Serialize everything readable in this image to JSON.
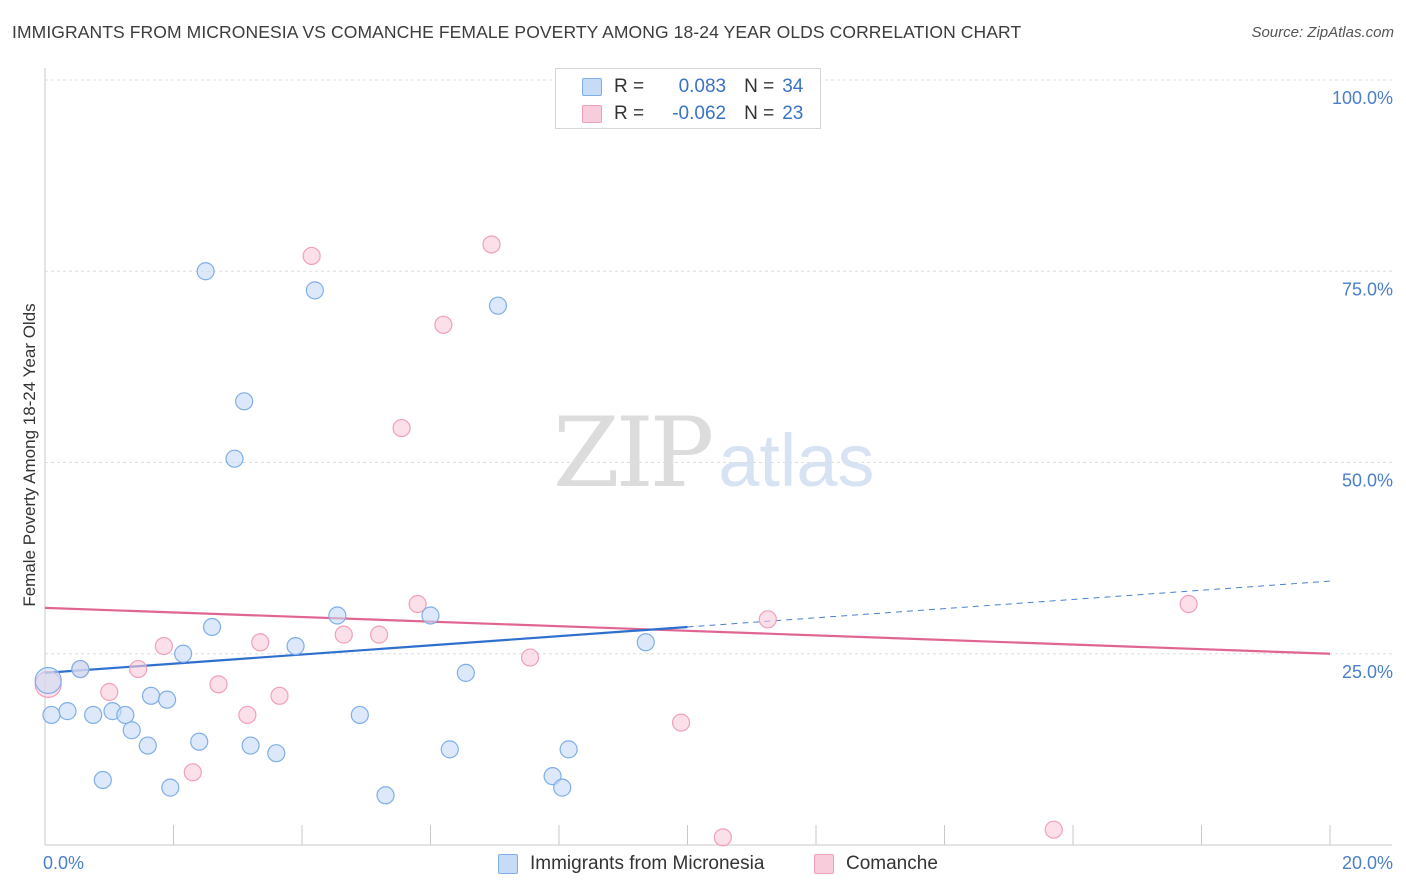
{
  "title": "IMMIGRANTS FROM MICRONESIA VS COMANCHE FEMALE POVERTY AMONG 18-24 YEAR OLDS CORRELATION CHART",
  "source": "Source: ZipAtlas.com",
  "watermark": {
    "zip": "ZIP",
    "atlas": "atlas"
  },
  "legend_top": {
    "rows": [
      {
        "r_label": "R =",
        "r_value": "0.083",
        "n_label": "N =",
        "n_value": "34"
      },
      {
        "r_label": "R =",
        "r_value": "-0.062",
        "n_label": "N =",
        "n_value": "23"
      }
    ]
  },
  "chart_data": {
    "type": "scatter",
    "title": "IMMIGRANTS FROM MICRONESIA VS COMANCHE FEMALE POVERTY AMONG 18-24 YEAR OLDS CORRELATION CHART",
    "xlabel": "",
    "ylabel": "Female Poverty Among 18-24 Year Olds",
    "xlim": [
      0,
      20
    ],
    "ylim": [
      0,
      100
    ],
    "x_ticks": [
      "0.0%",
      "20.0%"
    ],
    "y_ticks": [
      "100.0%",
      "75.0%",
      "50.0%",
      "25.0%"
    ],
    "grid": true,
    "legend_position": "bottom",
    "series": [
      {
        "name": "Immigrants from Micronesia",
        "color": "#7faee8",
        "fill": "#c6dbf6",
        "r": 0.083,
        "n": 34,
        "trend": {
          "x": [
            0,
            10
          ],
          "y": [
            22.5,
            28.5
          ],
          "dashed_extension": {
            "x": [
              10,
              20
            ],
            "y": [
              28.5,
              34.5
            ]
          }
        },
        "points": [
          {
            "x": 0.05,
            "y": 21.5
          },
          {
            "x": 0.35,
            "y": 17.5
          },
          {
            "x": 0.55,
            "y": 23.0
          },
          {
            "x": 0.75,
            "y": 17.0
          },
          {
            "x": 0.9,
            "y": 8.5
          },
          {
            "x": 1.05,
            "y": 17.5
          },
          {
            "x": 1.25,
            "y": 17.0
          },
          {
            "x": 1.35,
            "y": 15.0
          },
          {
            "x": 1.6,
            "y": 13.0
          },
          {
            "x": 1.65,
            "y": 19.5
          },
          {
            "x": 1.9,
            "y": 19.0
          },
          {
            "x": 1.95,
            "y": 7.5
          },
          {
            "x": 2.15,
            "y": 25.0
          },
          {
            "x": 2.4,
            "y": 13.5
          },
          {
            "x": 2.5,
            "y": 75.0
          },
          {
            "x": 2.6,
            "y": 28.5
          },
          {
            "x": 2.95,
            "y": 50.5
          },
          {
            "x": 3.1,
            "y": 58.0
          },
          {
            "x": 3.2,
            "y": 13.0
          },
          {
            "x": 3.6,
            "y": 12.0
          },
          {
            "x": 3.9,
            "y": 26.0
          },
          {
            "x": 4.2,
            "y": 72.5
          },
          {
            "x": 4.55,
            "y": 30.0
          },
          {
            "x": 4.9,
            "y": 17.0
          },
          {
            "x": 5.3,
            "y": 6.5
          },
          {
            "x": 6.0,
            "y": 30.0
          },
          {
            "x": 6.3,
            "y": 12.5
          },
          {
            "x": 6.55,
            "y": 22.5
          },
          {
            "x": 7.05,
            "y": 70.5
          },
          {
            "x": 7.9,
            "y": 9.0
          },
          {
            "x": 8.05,
            "y": 7.5
          },
          {
            "x": 8.15,
            "y": 12.5
          },
          {
            "x": 9.35,
            "y": 26.5
          },
          {
            "x": 0.1,
            "y": 17.0
          }
        ]
      },
      {
        "name": "Comanche",
        "color": "#f0a0bb",
        "fill": "#f9ccdb",
        "r": -0.062,
        "n": 23,
        "trend": {
          "x": [
            0,
            20
          ],
          "y": [
            31.0,
            25.0
          ]
        },
        "points": [
          {
            "x": 0.05,
            "y": 21.0
          },
          {
            "x": 0.55,
            "y": 23.0
          },
          {
            "x": 1.0,
            "y": 20.0
          },
          {
            "x": 1.45,
            "y": 23.0
          },
          {
            "x": 1.85,
            "y": 26.0
          },
          {
            "x": 2.3,
            "y": 9.5
          },
          {
            "x": 2.7,
            "y": 21.0
          },
          {
            "x": 3.15,
            "y": 17.0
          },
          {
            "x": 3.35,
            "y": 26.5
          },
          {
            "x": 3.65,
            "y": 19.5
          },
          {
            "x": 4.15,
            "y": 77.0
          },
          {
            "x": 4.65,
            "y": 27.5
          },
          {
            "x": 5.2,
            "y": 27.5
          },
          {
            "x": 5.55,
            "y": 54.5
          },
          {
            "x": 5.8,
            "y": 31.5
          },
          {
            "x": 6.2,
            "y": 68.0
          },
          {
            "x": 6.95,
            "y": 78.5
          },
          {
            "x": 7.55,
            "y": 24.5
          },
          {
            "x": 9.9,
            "y": 16.0
          },
          {
            "x": 10.55,
            "y": 1.0
          },
          {
            "x": 11.25,
            "y": 29.5
          },
          {
            "x": 15.7,
            "y": 2.0
          },
          {
            "x": 17.8,
            "y": 31.5
          }
        ]
      }
    ]
  }
}
